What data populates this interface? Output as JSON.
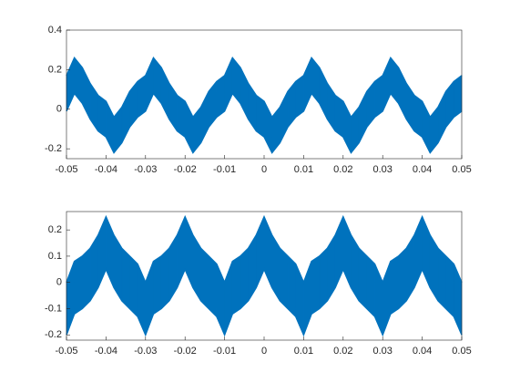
{
  "chart_data": [
    {
      "type": "band",
      "color": "#0072bd",
      "x": [
        -0.05,
        -0.048,
        -0.046,
        -0.044,
        -0.042,
        -0.04,
        -0.038,
        -0.036,
        -0.034,
        -0.032,
        -0.03,
        -0.028,
        -0.026,
        -0.024,
        -0.022,
        -0.02,
        -0.018,
        -0.016,
        -0.014,
        -0.012,
        -0.01,
        -0.008,
        -0.006,
        -0.004,
        -0.002,
        0,
        0.002,
        0.004,
        0.006,
        0.008,
        0.01,
        0.012,
        0.014,
        0.016,
        0.018,
        0.02,
        0.022,
        0.024,
        0.026,
        0.028,
        0.03,
        0.032,
        0.034,
        0.036,
        0.038,
        0.04,
        0.042,
        0.044,
        0.046,
        0.048,
        0.05
      ],
      "upper": [
        0.17,
        0.26,
        0.21,
        0.13,
        0.07,
        0.04,
        -0.04,
        0.01,
        0.09,
        0.14,
        0.17,
        0.26,
        0.21,
        0.13,
        0.07,
        0.04,
        -0.04,
        0.01,
        0.09,
        0.14,
        0.17,
        0.26,
        0.21,
        0.13,
        0.07,
        0.04,
        -0.04,
        0.01,
        0.09,
        0.14,
        0.17,
        0.26,
        0.21,
        0.13,
        0.07,
        0.04,
        -0.04,
        0.01,
        0.09,
        0.14,
        0.17,
        0.26,
        0.21,
        0.13,
        0.07,
        0.04,
        -0.04,
        0.01,
        0.09,
        0.14,
        0.17
      ],
      "lower": [
        -0.01,
        0.08,
        0.03,
        -0.05,
        -0.11,
        -0.14,
        -0.22,
        -0.17,
        -0.09,
        -0.04,
        -0.01,
        0.08,
        0.03,
        -0.05,
        -0.11,
        -0.14,
        -0.22,
        -0.17,
        -0.09,
        -0.04,
        -0.01,
        0.08,
        0.03,
        -0.05,
        -0.11,
        -0.14,
        -0.22,
        -0.17,
        -0.09,
        -0.04,
        -0.01,
        0.08,
        0.03,
        -0.05,
        -0.11,
        -0.14,
        -0.22,
        -0.17,
        -0.09,
        -0.04,
        -0.01,
        0.08,
        0.03,
        -0.05,
        -0.11,
        -0.14,
        -0.22,
        -0.17,
        -0.09,
        -0.04,
        -0.01
      ],
      "xlim": [
        -0.05,
        0.05
      ],
      "xticks": [
        -0.05,
        -0.04,
        -0.03,
        -0.02,
        -0.01,
        0,
        0.01,
        0.02,
        0.03,
        0.04,
        0.05
      ],
      "ylim": [
        -0.25,
        0.4
      ],
      "yticks": [
        -0.2,
        0,
        0.2,
        0.4
      ]
    },
    {
      "type": "band",
      "color": "#0072bd",
      "x": [
        -0.05,
        -0.048,
        -0.046,
        -0.044,
        -0.042,
        -0.04,
        -0.038,
        -0.036,
        -0.034,
        -0.032,
        -0.03,
        -0.028,
        -0.026,
        -0.024,
        -0.022,
        -0.02,
        -0.018,
        -0.016,
        -0.014,
        -0.012,
        -0.01,
        -0.008,
        -0.006,
        -0.004,
        -0.002,
        0,
        0.002,
        0.004,
        0.006,
        0.008,
        0.01,
        0.012,
        0.014,
        0.016,
        0.018,
        0.02,
        0.022,
        0.024,
        0.026,
        0.028,
        0.03,
        0.032,
        0.034,
        0.036,
        0.038,
        0.04,
        0.042,
        0.044,
        0.046,
        0.048,
        0.05
      ],
      "upper": [
        0.0,
        0.08,
        0.1,
        0.13,
        0.18,
        0.25,
        0.18,
        0.13,
        0.1,
        0.07,
        0.0,
        0.08,
        0.1,
        0.13,
        0.18,
        0.25,
        0.18,
        0.13,
        0.1,
        0.07,
        0.0,
        0.08,
        0.1,
        0.13,
        0.18,
        0.25,
        0.18,
        0.13,
        0.1,
        0.07,
        0.0,
        0.08,
        0.1,
        0.13,
        0.18,
        0.25,
        0.18,
        0.13,
        0.1,
        0.07,
        0.0,
        0.08,
        0.1,
        0.13,
        0.18,
        0.25,
        0.18,
        0.13,
        0.1,
        0.07,
        0.0
      ],
      "lower": [
        -0.2,
        -0.12,
        -0.1,
        -0.07,
        -0.02,
        0.05,
        -0.02,
        -0.07,
        -0.1,
        -0.13,
        -0.2,
        -0.12,
        -0.1,
        -0.07,
        -0.02,
        0.05,
        -0.02,
        -0.07,
        -0.1,
        -0.13,
        -0.2,
        -0.12,
        -0.1,
        -0.07,
        -0.02,
        0.05,
        -0.02,
        -0.07,
        -0.1,
        -0.13,
        -0.2,
        -0.12,
        -0.1,
        -0.07,
        -0.02,
        0.05,
        -0.02,
        -0.07,
        -0.1,
        -0.13,
        -0.2,
        -0.12,
        -0.1,
        -0.07,
        -0.02,
        0.05,
        -0.02,
        -0.07,
        -0.1,
        -0.13,
        -0.2
      ],
      "xlim": [
        -0.05,
        0.05
      ],
      "xticks": [
        -0.05,
        -0.04,
        -0.03,
        -0.02,
        -0.01,
        0,
        0.01,
        0.02,
        0.03,
        0.04,
        0.05
      ],
      "ylim": [
        -0.22,
        0.27
      ],
      "yticks": [
        -0.2,
        -0.1,
        0,
        0.1,
        0.2
      ]
    }
  ]
}
